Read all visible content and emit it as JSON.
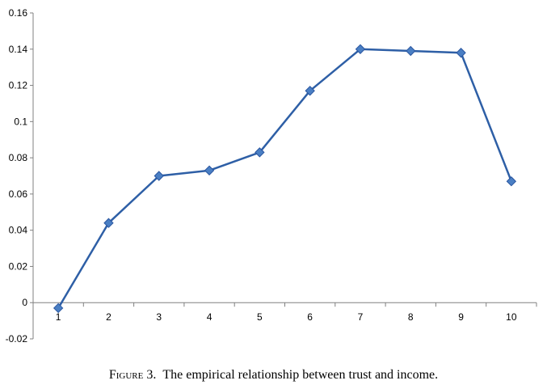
{
  "caption": {
    "figure_label": "Figure 3.",
    "text": "The empirical relationship between trust and income."
  },
  "chart_data": {
    "type": "line",
    "title": "",
    "xlabel": "",
    "ylabel": "",
    "categories": [
      "1",
      "2",
      "3",
      "4",
      "5",
      "6",
      "7",
      "8",
      "9",
      "10"
    ],
    "series": [
      {
        "values": [
          -0.003,
          0.044,
          0.07,
          0.073,
          0.083,
          0.117,
          0.14,
          0.139,
          0.138,
          0.067
        ]
      }
    ],
    "ylim": [
      -0.02,
      0.16
    ],
    "yticks": [
      {
        "value": -0.02,
        "label": "-0.02"
      },
      {
        "value": 0,
        "label": "0"
      },
      {
        "value": 0.02,
        "label": "0.02"
      },
      {
        "value": 0.04,
        "label": "0.04"
      },
      {
        "value": 0.06,
        "label": "0.06"
      },
      {
        "value": 0.08,
        "label": "0.08"
      },
      {
        "value": 0.1,
        "label": "0.1"
      },
      {
        "value": 0.12,
        "label": "0.12"
      },
      {
        "value": 0.14,
        "label": "0.14"
      },
      {
        "value": 0.16,
        "label": "0.16"
      }
    ],
    "grid": false,
    "legend": "none",
    "marker": "diamond",
    "line_color": "#2e5fa6",
    "marker_fill": "#4a7fc4",
    "marker_stroke": "#2a56a0"
  }
}
